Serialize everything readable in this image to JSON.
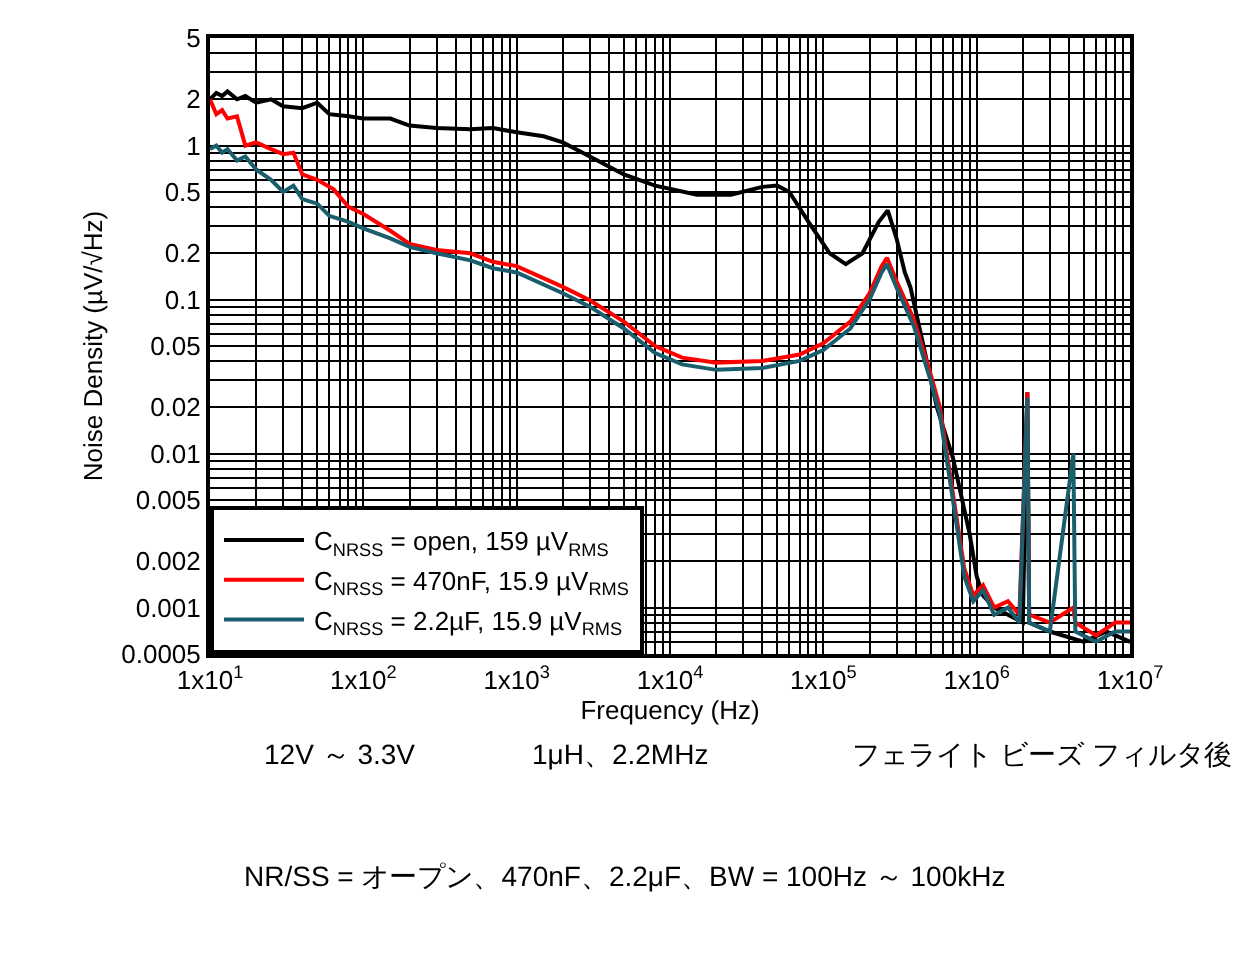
{
  "chart_data": {
    "type": "line",
    "xlabel": "Frequency (Hz)",
    "ylabel": "Noise Density (µV/√Hz)",
    "log": "xy",
    "grid": true,
    "legend": "bottom left",
    "line_style": "solid",
    "marker": "none",
    "xlim": [
      10,
      10000000
    ],
    "xticks": [
      {
        "value": 10,
        "label": "1x10$^{1}$"
      },
      {
        "value": 100,
        "label": "1x10$^{2}$"
      },
      {
        "value": 1000,
        "label": "1x10$^{3}$"
      },
      {
        "value": 10000,
        "label": "1x10$^{4}$"
      },
      {
        "value": 100000,
        "label": "1x10$^{5}$"
      },
      {
        "value": 1000000,
        "label": "1x10$^{6}$"
      },
      {
        "value": 10000000,
        "label": "1x10$^{7}$"
      }
    ],
    "ylim": [
      0.0005,
      5
    ],
    "yticks": [
      0.0005,
      0.001,
      0.002,
      0.005,
      0.01,
      0.02,
      0.05,
      0.1,
      0.2,
      0.5,
      1,
      2,
      5
    ],
    "series": [
      {
        "name": "C$_{NRSS}$ = open, 159 µV$_{RMS}$",
        "color": "#000000",
        "x": [
          10,
          11,
          12,
          13,
          15,
          17,
          20,
          25,
          30,
          40,
          50,
          60,
          80,
          100,
          150,
          200,
          300,
          500,
          700,
          1000,
          1500,
          2000,
          3000,
          5000,
          8000,
          15000,
          25000,
          40000,
          50000,
          60000,
          80000,
          110000,
          140000,
          180000,
          230000,
          263000,
          300000,
          340000,
          370000,
          450000,
          550000,
          700000,
          900000,
          1000000,
          1100000,
          1300000,
          1600000,
          2000000,
          2140000,
          2200000,
          3000000,
          5000000,
          7000000,
          10000000
        ],
        "values": [
          2.0,
          2.2,
          2.1,
          2.25,
          2.0,
          2.1,
          1.9,
          2.0,
          1.8,
          1.75,
          1.9,
          1.6,
          1.55,
          1.5,
          1.5,
          1.35,
          1.3,
          1.28,
          1.3,
          1.22,
          1.15,
          1.05,
          0.85,
          0.65,
          0.55,
          0.48,
          0.48,
          0.54,
          0.55,
          0.5,
          0.32,
          0.2,
          0.17,
          0.2,
          0.32,
          0.38,
          0.25,
          0.15,
          0.12,
          0.05,
          0.02,
          0.0094,
          0.003,
          0.0016,
          0.0012,
          0.001,
          0.0009,
          0.0008,
          0.025,
          0.0008,
          0.0007,
          0.0006,
          0.0007,
          0.0006
        ]
      },
      {
        "name": "C$_{NRSS}$ = 470nF, 15.9 µV$_{RMS}$",
        "color": "#ff0000",
        "x": [
          10,
          11,
          12,
          13,
          15,
          17,
          20,
          25,
          30,
          35,
          40,
          50,
          64,
          80,
          100,
          150,
          200,
          300,
          500,
          700,
          1000,
          2000,
          3000,
          5000,
          8000,
          12000,
          20000,
          40000,
          70000,
          100000,
          150000,
          200000,
          240000,
          260000,
          300000,
          390000,
          500000,
          575000,
          700000,
          830000,
          950000,
          1100000,
          1300000,
          1600000,
          1900000,
          2140000,
          2200000,
          3000000,
          4270000,
          4400000,
          6000000,
          8000000,
          10000000
        ],
        "values": [
          2.0,
          1.6,
          1.7,
          1.5,
          1.55,
          1.0,
          1.05,
          0.95,
          0.88,
          0.9,
          0.65,
          0.6,
          0.52,
          0.4,
          0.36,
          0.28,
          0.23,
          0.21,
          0.2,
          0.176,
          0.165,
          0.121,
          0.099,
          0.072,
          0.05,
          0.042,
          0.039,
          0.04,
          0.044,
          0.052,
          0.072,
          0.11,
          0.165,
          0.187,
          0.132,
          0.074,
          0.033,
          0.02,
          0.0055,
          0.0018,
          0.0012,
          0.0014,
          0.001,
          0.0011,
          0.0009,
          0.025,
          0.0009,
          0.0008,
          0.001,
          0.0008,
          0.00066,
          0.0008,
          0.0008
        ]
      },
      {
        "name": "C$_{NRSS}$ = 2.2µF, 15.9 µV$_{RMS}$",
        "color": "#1a5e6e",
        "x": [
          10,
          11,
          12,
          13,
          15,
          17,
          20,
          25,
          30,
          35,
          40,
          50,
          60,
          80,
          100,
          150,
          200,
          300,
          500,
          700,
          1000,
          2000,
          3000,
          5000,
          8000,
          12000,
          20000,
          40000,
          70000,
          100000,
          150000,
          200000,
          240000,
          260000,
          300000,
          390000,
          500000,
          575000,
          700000,
          830000,
          950000,
          1100000,
          1300000,
          1600000,
          1900000,
          2140000,
          2200000,
          3000000,
          4270000,
          4400000,
          6000000,
          8000000,
          10000000
        ],
        "values": [
          0.95,
          1.0,
          0.9,
          0.95,
          0.8,
          0.85,
          0.7,
          0.6,
          0.5,
          0.55,
          0.45,
          0.42,
          0.35,
          0.32,
          0.29,
          0.25,
          0.22,
          0.2,
          0.18,
          0.16,
          0.15,
          0.11,
          0.09,
          0.065,
          0.045,
          0.038,
          0.035,
          0.036,
          0.04,
          0.047,
          0.065,
          0.1,
          0.15,
          0.17,
          0.12,
          0.067,
          0.03,
          0.018,
          0.005,
          0.0016,
          0.0011,
          0.0013,
          0.0009,
          0.001,
          0.0008,
          0.023,
          0.0008,
          0.0007,
          0.01,
          0.0007,
          0.0006,
          0.0007,
          0.0007
        ]
      }
    ],
    "annotations": [
      "12V ～ 3.3V",
      "1μH、2.2MHz",
      "フェライト ビーズ フィルタ後",
      "NR/SS = オープン、470nF、2.2μF、BW = 100Hz ～ 100kHz"
    ]
  }
}
